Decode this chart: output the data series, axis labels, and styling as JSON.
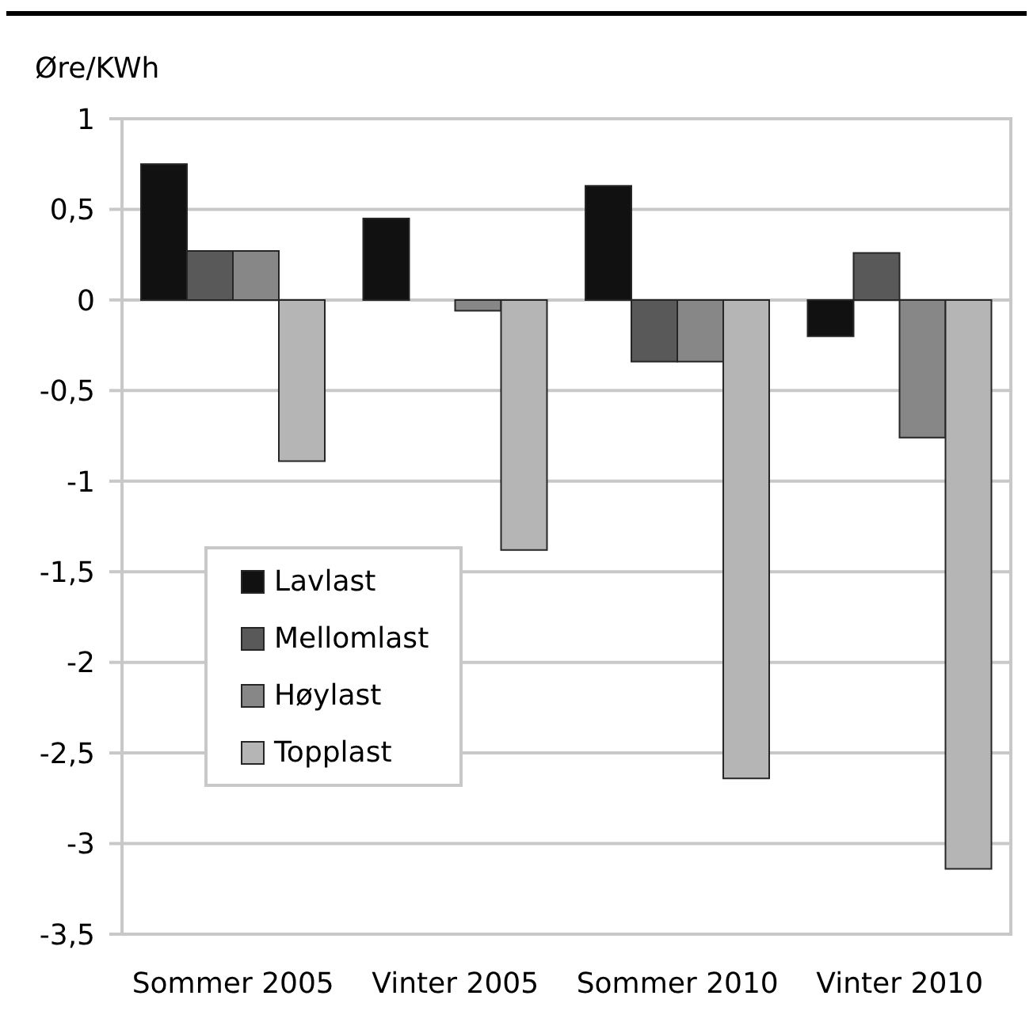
{
  "chart_data": {
    "type": "bar",
    "ylabel": "Øre/KWh",
    "categories": [
      "Sommer 2005",
      "Vinter 2005",
      "Sommer 2010",
      "Vinter 2010"
    ],
    "series": [
      {
        "name": "Lavlast",
        "color": "#111111",
        "values": [
          0.75,
          0.45,
          0.63,
          -0.2
        ]
      },
      {
        "name": "Mellomlast",
        "color": "#595959",
        "values": [
          0.27,
          null,
          -0.34,
          0.26
        ]
      },
      {
        "name": "Høylast",
        "color": "#878787",
        "values": [
          0.27,
          -0.06,
          -0.34,
          -0.76
        ]
      },
      {
        "name": "Topplast",
        "color": "#b5b5b5",
        "values": [
          -0.89,
          -1.38,
          -2.64,
          -3.14
        ]
      }
    ],
    "ylim": [
      -3.5,
      1
    ],
    "yticks": [
      {
        "value": -3.5,
        "label": "-3,5"
      },
      -3,
      {
        "value": -2.5,
        "label": "-2,5"
      },
      -2,
      {
        "value": -1.5,
        "label": "-1,5"
      },
      -1,
      {
        "value": -0.5,
        "label": "-0,5"
      },
      0,
      {
        "value": 0.5,
        "label": "0,5"
      },
      1
    ],
    "grid": "y",
    "legend": "left"
  }
}
